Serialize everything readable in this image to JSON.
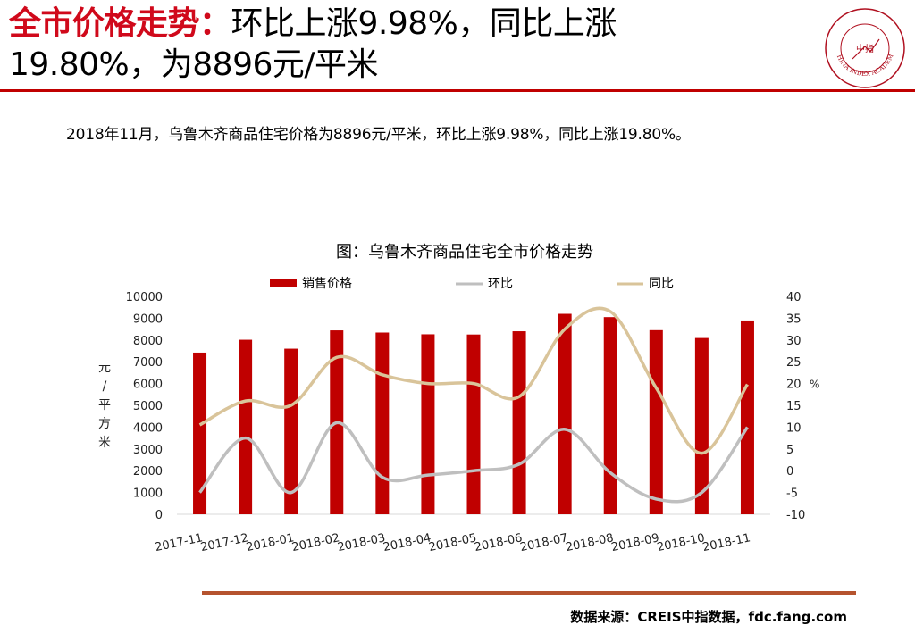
{
  "header": {
    "title_highlight": "全市价格走势：",
    "title_rest_line1": "环比上涨9.98%，同比上涨",
    "title_line2": "19.80%，为8896元/平米",
    "logo_text": "CHINA INDEX ACADEMY",
    "logo_center": "中指"
  },
  "summary": "2018年11月，乌鲁木齐商品住宅价格为8896元/平米，环比上涨9.98%，同比上涨19.80%。",
  "source": "数据来源：CREIS中指数据，fdc.fang.com",
  "colors": {
    "bar": "#c00000",
    "mom": "#bfbfbf",
    "yoy": "#d9c49a",
    "accent": "#d0091b"
  },
  "chart_data": {
    "type": "bar",
    "title": "图：乌鲁木齐商品住宅全市价格走势",
    "categories": [
      "2017-11",
      "2017-12",
      "2018-01",
      "2018-02",
      "2018-03",
      "2018-04",
      "2018-05",
      "2018-06",
      "2018-07",
      "2018-08",
      "2018-09",
      "2018-10",
      "2018-11"
    ],
    "ylabel_left": "元/平方米",
    "ylabel_right": "%",
    "ylim_left": [
      0,
      10000
    ],
    "yticks_left": [
      0,
      1000,
      2000,
      3000,
      4000,
      5000,
      6000,
      7000,
      8000,
      9000,
      10000
    ],
    "ylim_right": [
      -10,
      40
    ],
    "yticks_right": [
      -10,
      -5,
      0,
      5,
      10,
      15,
      20,
      25,
      30,
      35,
      40
    ],
    "legend_position": "top",
    "series": [
      {
        "name": "销售价格",
        "type": "bar",
        "axis": "left",
        "values": [
          7420,
          8010,
          7600,
          8440,
          8340,
          8260,
          8250,
          8400,
          9200,
          9050,
          8450,
          8090,
          8896
        ]
      },
      {
        "name": "环比",
        "type": "line",
        "axis": "right",
        "values": [
          -5,
          7.5,
          -5,
          11,
          -1.5,
          -1,
          0,
          1.5,
          9.5,
          -0.5,
          -6.5,
          -5,
          9.98
        ]
      },
      {
        "name": "同比",
        "type": "line",
        "axis": "right",
        "values": [
          10.5,
          16,
          15,
          26,
          22,
          20,
          20,
          17,
          32.5,
          36.5,
          19,
          4,
          19.8
        ]
      }
    ]
  }
}
